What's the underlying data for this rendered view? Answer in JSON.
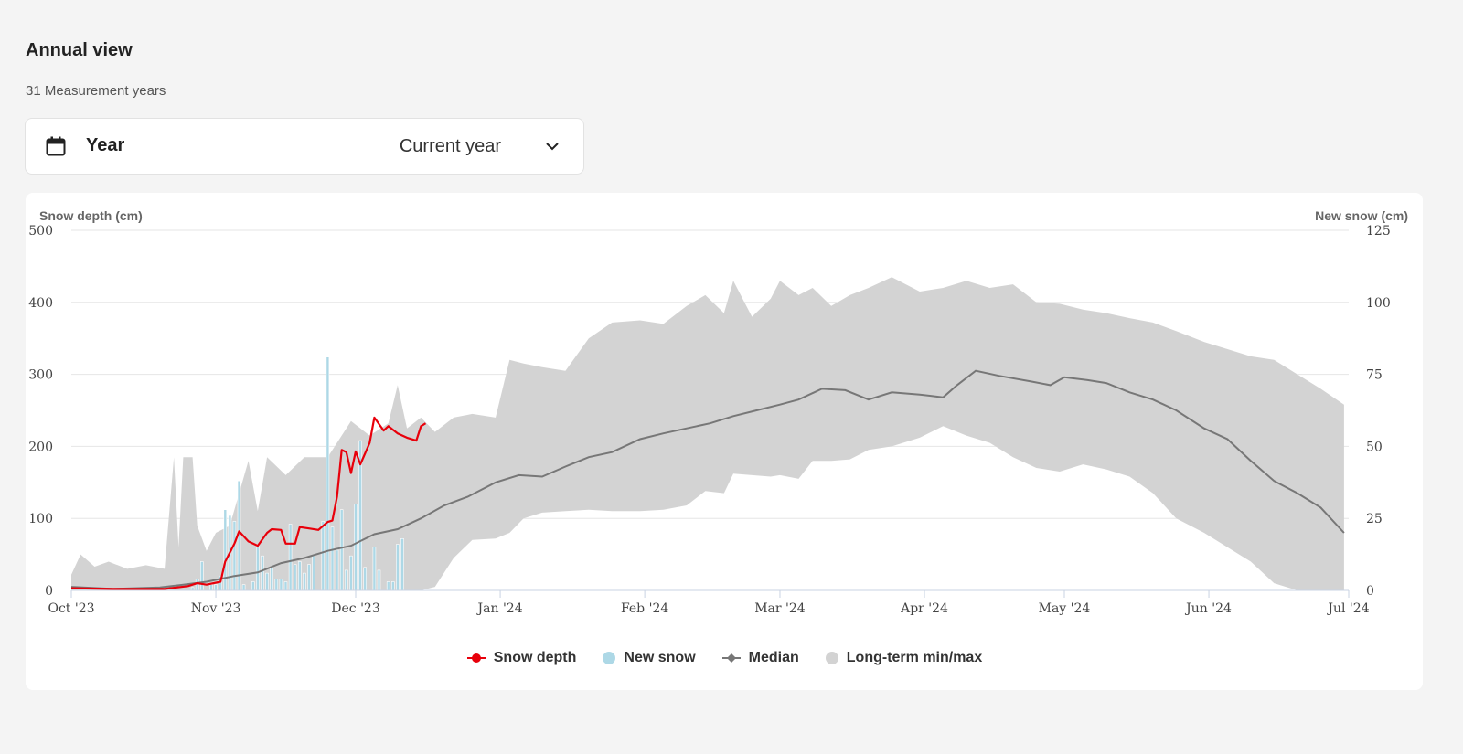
{
  "header": {
    "title": "Annual view",
    "subtitle": "31 Measurement years"
  },
  "year_select": {
    "label": "Year",
    "value": "Current year",
    "icon": "calendar-icon"
  },
  "colors": {
    "snow_depth": "#e8000b",
    "new_snow": "#add8e6",
    "median": "#777777",
    "minmax": "#d3d3d3"
  },
  "legend": [
    {
      "label": "Snow depth",
      "icon": "line-dot"
    },
    {
      "label": "New snow",
      "icon": "dot"
    },
    {
      "label": "Median",
      "icon": "line-diamond"
    },
    {
      "label": "Long-term min/max",
      "icon": "dot"
    }
  ],
  "chart_data": {
    "type": "line",
    "left_axis_label": "Snow depth (cm)",
    "right_axis_label": "New snow (cm)",
    "ylim_left": [
      0,
      500
    ],
    "ylim_right": [
      0,
      125
    ],
    "yticks_left": [
      0,
      100,
      200,
      300,
      400,
      500
    ],
    "yticks_right": [
      0,
      25,
      50,
      75,
      100,
      125
    ],
    "x_range": [
      "2023-10-01",
      "2024-07-01"
    ],
    "x_ticks": [
      {
        "date": "2023-10-01",
        "label": "Oct '23"
      },
      {
        "date": "2023-11-01",
        "label": "Nov '23"
      },
      {
        "date": "2023-12-01",
        "label": "Dec '23"
      },
      {
        "date": "2024-01-01",
        "label": "Jan '24"
      },
      {
        "date": "2024-02-01",
        "label": "Feb '24"
      },
      {
        "date": "2024-03-01",
        "label": "Mar '24"
      },
      {
        "date": "2024-04-01",
        "label": "Apr '24"
      },
      {
        "date": "2024-05-01",
        "label": "May '24"
      },
      {
        "date": "2024-06-01",
        "label": "Jun '24"
      },
      {
        "date": "2024-07-01",
        "label": "Jul '24"
      }
    ],
    "grid": true,
    "legend_position": "bottom-center",
    "series": [
      {
        "name": "Snow depth",
        "axis": "left",
        "points": [
          [
            "2023-10-01",
            3
          ],
          [
            "2023-10-10",
            2
          ],
          [
            "2023-10-21",
            2
          ],
          [
            "2023-10-26",
            6
          ],
          [
            "2023-10-28",
            10
          ],
          [
            "2023-10-30",
            8
          ],
          [
            "2023-11-02",
            12
          ],
          [
            "2023-11-03",
            40
          ],
          [
            "2023-11-05",
            65
          ],
          [
            "2023-11-06",
            82
          ],
          [
            "2023-11-08",
            68
          ],
          [
            "2023-11-10",
            62
          ],
          [
            "2023-11-12",
            80
          ],
          [
            "2023-11-13",
            85
          ],
          [
            "2023-11-15",
            84
          ],
          [
            "2023-11-16",
            65
          ],
          [
            "2023-11-18",
            65
          ],
          [
            "2023-11-19",
            88
          ],
          [
            "2023-11-21",
            86
          ],
          [
            "2023-11-23",
            84
          ],
          [
            "2023-11-25",
            95
          ],
          [
            "2023-11-26",
            97
          ],
          [
            "2023-11-27",
            130
          ],
          [
            "2023-11-28",
            195
          ],
          [
            "2023-11-29",
            192
          ],
          [
            "2023-11-30",
            163
          ],
          [
            "2023-12-01",
            193
          ],
          [
            "2023-12-02",
            175
          ],
          [
            "2023-12-03",
            190
          ],
          [
            "2023-12-04",
            205
          ],
          [
            "2023-12-05",
            240
          ],
          [
            "2023-12-07",
            222
          ],
          [
            "2023-12-08",
            228
          ],
          [
            "2023-12-10",
            218
          ],
          [
            "2023-12-12",
            212
          ],
          [
            "2023-12-14",
            208
          ],
          [
            "2023-12-15",
            228
          ],
          [
            "2023-12-16",
            232
          ]
        ]
      },
      {
        "name": "Median",
        "axis": "left",
        "points": [
          [
            "2023-10-01",
            5
          ],
          [
            "2023-10-10",
            2
          ],
          [
            "2023-10-20",
            4
          ],
          [
            "2023-10-25",
            8
          ],
          [
            "2023-10-30",
            12
          ],
          [
            "2023-11-05",
            20
          ],
          [
            "2023-11-10",
            25
          ],
          [
            "2023-11-15",
            38
          ],
          [
            "2023-11-20",
            45
          ],
          [
            "2023-11-25",
            55
          ],
          [
            "2023-11-30",
            62
          ],
          [
            "2023-12-05",
            78
          ],
          [
            "2023-12-10",
            85
          ],
          [
            "2023-12-15",
            100
          ],
          [
            "2023-12-20",
            118
          ],
          [
            "2023-12-25",
            130
          ],
          [
            "2023-12-31",
            150
          ],
          [
            "2024-01-05",
            160
          ],
          [
            "2024-01-10",
            158
          ],
          [
            "2024-01-15",
            172
          ],
          [
            "2024-01-20",
            185
          ],
          [
            "2024-01-25",
            192
          ],
          [
            "2024-01-31",
            210
          ],
          [
            "2024-02-05",
            218
          ],
          [
            "2024-02-10",
            225
          ],
          [
            "2024-02-15",
            232
          ],
          [
            "2024-02-20",
            242
          ],
          [
            "2024-02-25",
            250
          ],
          [
            "2024-03-01",
            258
          ],
          [
            "2024-03-05",
            265
          ],
          [
            "2024-03-10",
            280
          ],
          [
            "2024-03-15",
            278
          ],
          [
            "2024-03-20",
            265
          ],
          [
            "2024-03-25",
            275
          ],
          [
            "2024-03-31",
            272
          ],
          [
            "2024-04-05",
            268
          ],
          [
            "2024-04-08",
            285
          ],
          [
            "2024-04-12",
            305
          ],
          [
            "2024-04-17",
            298
          ],
          [
            "2024-04-24",
            290
          ],
          [
            "2024-04-28",
            285
          ],
          [
            "2024-05-01",
            296
          ],
          [
            "2024-05-06",
            292
          ],
          [
            "2024-05-10",
            288
          ],
          [
            "2024-05-15",
            275
          ],
          [
            "2024-05-20",
            265
          ],
          [
            "2024-05-25",
            250
          ],
          [
            "2024-05-31",
            225
          ],
          [
            "2024-06-05",
            210
          ],
          [
            "2024-06-10",
            180
          ],
          [
            "2024-06-15",
            152
          ],
          [
            "2024-06-20",
            135
          ],
          [
            "2024-06-25",
            115
          ],
          [
            "2024-06-30",
            80
          ]
        ]
      },
      {
        "name": "Long-term min/max",
        "axis": "left",
        "type": "arearange",
        "points": [
          [
            "2023-10-01",
            0,
            22
          ],
          [
            "2023-10-03",
            0,
            50
          ],
          [
            "2023-10-06",
            0,
            33
          ],
          [
            "2023-10-09",
            0,
            40
          ],
          [
            "2023-10-13",
            0,
            30
          ],
          [
            "2023-10-17",
            0,
            35
          ],
          [
            "2023-10-21",
            0,
            30
          ],
          [
            "2023-10-23",
            0,
            185
          ],
          [
            "2023-10-24",
            0,
            60
          ],
          [
            "2023-10-25",
            0,
            185
          ],
          [
            "2023-10-27",
            0,
            185
          ],
          [
            "2023-10-28",
            0,
            90
          ],
          [
            "2023-10-30",
            0,
            55
          ],
          [
            "2023-11-01",
            0,
            80
          ],
          [
            "2023-11-04",
            0,
            90
          ],
          [
            "2023-11-08",
            0,
            180
          ],
          [
            "2023-11-10",
            0,
            110
          ],
          [
            "2023-11-12",
            0,
            185
          ],
          [
            "2023-11-16",
            0,
            160
          ],
          [
            "2023-11-20",
            0,
            185
          ],
          [
            "2023-11-25",
            0,
            185
          ],
          [
            "2023-11-30",
            0,
            235
          ],
          [
            "2023-12-04",
            0,
            215
          ],
          [
            "2023-12-08",
            0,
            232
          ],
          [
            "2023-12-10",
            0,
            285
          ],
          [
            "2023-12-12",
            0,
            225
          ],
          [
            "2023-12-15",
            0,
            240
          ],
          [
            "2023-12-18",
            5,
            220
          ],
          [
            "2023-12-22",
            45,
            240
          ],
          [
            "2023-12-26",
            70,
            245
          ],
          [
            "2023-12-31",
            72,
            240
          ],
          [
            "2024-01-03",
            80,
            320
          ],
          [
            "2024-01-06",
            100,
            315
          ],
          [
            "2024-01-10",
            108,
            310
          ],
          [
            "2024-01-15",
            110,
            305
          ],
          [
            "2024-01-20",
            112,
            350
          ],
          [
            "2024-01-25",
            110,
            372
          ],
          [
            "2024-01-31",
            110,
            375
          ],
          [
            "2024-02-05",
            112,
            370
          ],
          [
            "2024-02-10",
            118,
            395
          ],
          [
            "2024-02-14",
            138,
            410
          ],
          [
            "2024-02-18",
            135,
            385
          ],
          [
            "2024-02-20",
            162,
            430
          ],
          [
            "2024-02-24",
            160,
            380
          ],
          [
            "2024-02-28",
            158,
            405
          ],
          [
            "2024-03-01",
            160,
            430
          ],
          [
            "2024-03-05",
            155,
            410
          ],
          [
            "2024-03-08",
            180,
            420
          ],
          [
            "2024-03-12",
            180,
            395
          ],
          [
            "2024-03-16",
            182,
            410
          ],
          [
            "2024-03-20",
            195,
            420
          ],
          [
            "2024-03-25",
            200,
            435
          ],
          [
            "2024-03-31",
            212,
            415
          ],
          [
            "2024-04-05",
            228,
            420
          ],
          [
            "2024-04-10",
            215,
            430
          ],
          [
            "2024-04-15",
            205,
            420
          ],
          [
            "2024-04-20",
            185,
            425
          ],
          [
            "2024-04-25",
            170,
            400
          ],
          [
            "2024-04-30",
            165,
            398
          ],
          [
            "2024-05-05",
            175,
            390
          ],
          [
            "2024-05-10",
            168,
            385
          ],
          [
            "2024-05-15",
            158,
            378
          ],
          [
            "2024-05-20",
            135,
            372
          ],
          [
            "2024-05-25",
            100,
            360
          ],
          [
            "2024-05-31",
            80,
            345
          ],
          [
            "2024-06-05",
            60,
            335
          ],
          [
            "2024-06-10",
            40,
            325
          ],
          [
            "2024-06-15",
            10,
            320
          ],
          [
            "2024-06-20",
            0,
            300
          ],
          [
            "2024-06-25",
            0,
            280
          ],
          [
            "2024-06-30",
            0,
            258
          ]
        ]
      },
      {
        "name": "New snow",
        "axis": "right",
        "type": "column",
        "points": [
          [
            "2023-10-27",
            1
          ],
          [
            "2023-10-28",
            4
          ],
          [
            "2023-10-29",
            10
          ],
          [
            "2023-10-31",
            2
          ],
          [
            "2023-11-01",
            2
          ],
          [
            "2023-11-02",
            5
          ],
          [
            "2023-11-03",
            28
          ],
          [
            "2023-11-04",
            26
          ],
          [
            "2023-11-05",
            24
          ],
          [
            "2023-11-06",
            38
          ],
          [
            "2023-11-07",
            2
          ],
          [
            "2023-11-09",
            3
          ],
          [
            "2023-11-10",
            16
          ],
          [
            "2023-11-11",
            12
          ],
          [
            "2023-11-12",
            6
          ],
          [
            "2023-11-13",
            8
          ],
          [
            "2023-11-14",
            4
          ],
          [
            "2023-11-15",
            4
          ],
          [
            "2023-11-16",
            3
          ],
          [
            "2023-11-17",
            23
          ],
          [
            "2023-11-18",
            9
          ],
          [
            "2023-11-19",
            10
          ],
          [
            "2023-11-20",
            6
          ],
          [
            "2023-11-21",
            9
          ],
          [
            "2023-11-22",
            12
          ],
          [
            "2023-11-24",
            24
          ],
          [
            "2023-11-25",
            81
          ],
          [
            "2023-11-26",
            22
          ],
          [
            "2023-11-27",
            14
          ],
          [
            "2023-11-28",
            28
          ],
          [
            "2023-11-29",
            7
          ],
          [
            "2023-11-30",
            12
          ],
          [
            "2023-12-01",
            30
          ],
          [
            "2023-12-02",
            52
          ],
          [
            "2023-12-03",
            8
          ],
          [
            "2023-12-05",
            15
          ],
          [
            "2023-12-06",
            7
          ],
          [
            "2023-12-08",
            3
          ],
          [
            "2023-12-09",
            3
          ],
          [
            "2023-12-10",
            16
          ],
          [
            "2023-12-11",
            18
          ]
        ]
      }
    ]
  }
}
